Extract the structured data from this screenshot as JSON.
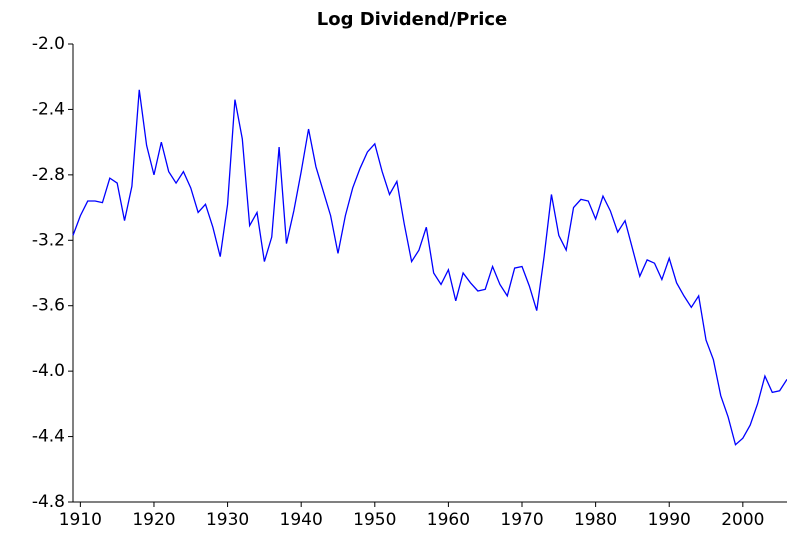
{
  "chart_data": {
    "type": "line",
    "title": "Log Dividend/Price",
    "x": [
      1909,
      1910,
      1911,
      1912,
      1913,
      1914,
      1915,
      1916,
      1917,
      1918,
      1919,
      1920,
      1921,
      1922,
      1923,
      1924,
      1925,
      1926,
      1927,
      1928,
      1929,
      1930,
      1931,
      1932,
      1933,
      1934,
      1935,
      1936,
      1937,
      1938,
      1939,
      1940,
      1941,
      1942,
      1943,
      1944,
      1945,
      1946,
      1947,
      1948,
      1949,
      1950,
      1951,
      1952,
      1953,
      1954,
      1955,
      1956,
      1957,
      1958,
      1959,
      1960,
      1961,
      1962,
      1963,
      1964,
      1965,
      1966,
      1967,
      1968,
      1969,
      1970,
      1971,
      1972,
      1973,
      1974,
      1975,
      1976,
      1977,
      1978,
      1979,
      1980,
      1981,
      1982,
      1983,
      1984,
      1985,
      1986,
      1987,
      1988,
      1989,
      1990,
      1991,
      1992,
      1993,
      1994,
      1995,
      1996,
      1997,
      1998,
      1999,
      2000,
      2001,
      2002,
      2003,
      2004,
      2005,
      2006
    ],
    "series": [
      {
        "color": "#0000ff",
        "values": [
          -3.17,
          -3.05,
          -2.96,
          -2.96,
          -2.97,
          -2.82,
          -2.85,
          -3.08,
          -2.87,
          -2.28,
          -2.62,
          -2.8,
          -2.6,
          -2.78,
          -2.85,
          -2.78,
          -2.88,
          -3.03,
          -2.98,
          -3.12,
          -3.3,
          -2.98,
          -2.34,
          -2.58,
          -3.11,
          -3.03,
          -3.33,
          -3.18,
          -2.63,
          -3.22,
          -3.02,
          -2.78,
          -2.52,
          -2.75,
          -2.9,
          -3.05,
          -3.28,
          -3.05,
          -2.88,
          -2.76,
          -2.66,
          -2.61,
          -2.78,
          -2.92,
          -2.84,
          -3.1,
          -3.33,
          -3.26,
          -3.12,
          -3.4,
          -3.47,
          -3.38,
          -3.57,
          -3.4,
          -3.46,
          -3.51,
          -3.5,
          -3.36,
          -3.47,
          -3.54,
          -3.37,
          -3.36,
          -3.48,
          -3.63,
          -3.3,
          -2.92,
          -3.17,
          -3.26,
          -3.0,
          -2.95,
          -2.96,
          -3.07,
          -2.93,
          -3.02,
          -3.15,
          -3.08,
          -3.25,
          -3.42,
          -3.32,
          -3.34,
          -3.44,
          -3.31,
          -3.46,
          -3.54,
          -3.61,
          -3.54,
          -3.81,
          -3.93,
          -4.15,
          -4.28,
          -4.45,
          -4.41,
          -4.33,
          -4.2,
          -4.03,
          -4.13,
          -4.12,
          -4.05
        ]
      }
    ],
    "xlim": [
      1909,
      2006
    ],
    "xticks": [
      1910,
      1920,
      1930,
      1940,
      1950,
      1960,
      1970,
      1980,
      1990,
      2000
    ],
    "ylim": [
      -4.8,
      -2.0
    ],
    "yticks": [
      {
        "value": -4.8,
        "label": "-4.8"
      },
      -4.4,
      {
        "value": -4.0,
        "label": "-4.0"
      },
      -3.6,
      -3.2,
      -2.8,
      -2.4,
      {
        "value": -2.0,
        "label": "-2.0"
      }
    ]
  }
}
